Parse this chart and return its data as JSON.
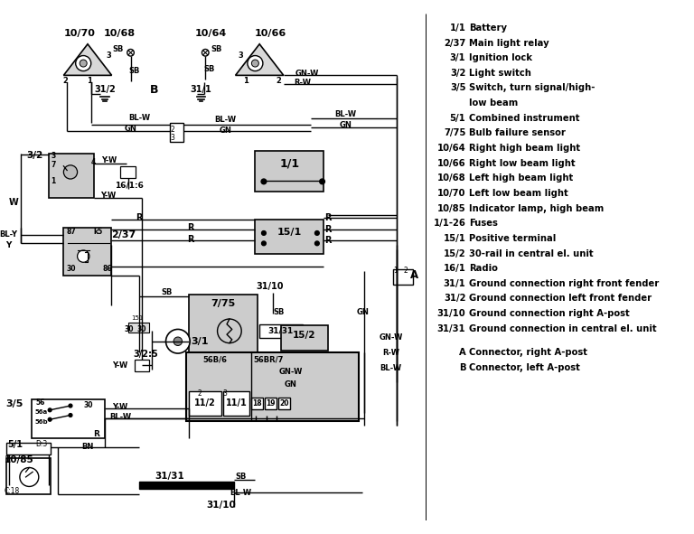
{
  "bg_color": "#ffffff",
  "legend": [
    [
      "1/1",
      "Battery"
    ],
    [
      "2/37",
      "Main light relay"
    ],
    [
      "3/1",
      "Ignition lock"
    ],
    [
      "3/2",
      "Light switch"
    ],
    [
      "3/5",
      "Switch, turn signal/high-"
    ],
    [
      "",
      "low beam"
    ],
    [
      "5/1",
      "Combined instrument"
    ],
    [
      "7/75",
      "Bulb failure sensor"
    ],
    [
      "10/64",
      "Right high beam light"
    ],
    [
      "10/66",
      "Right low beam light"
    ],
    [
      "10/68",
      "Left high beam light"
    ],
    [
      "10/70",
      "Left low beam light"
    ],
    [
      "10/85",
      "Indicator lamp, high beam"
    ],
    [
      "1/1-26",
      "Fuses"
    ],
    [
      "15/1",
      "Positive terminal"
    ],
    [
      "15/2",
      "30-rail in central el. unit"
    ],
    [
      "16/1",
      "Radio"
    ],
    [
      "31/1",
      "Ground connection right front fender"
    ],
    [
      "31/2",
      "Ground connection left front fender"
    ],
    [
      "31/10",
      "Ground connection right A-post"
    ],
    [
      "31/31",
      "Ground connection in central el. unit"
    ],
    [
      "A",
      "Connector, right A-post"
    ],
    [
      "B",
      "Connector, left A-post"
    ]
  ]
}
